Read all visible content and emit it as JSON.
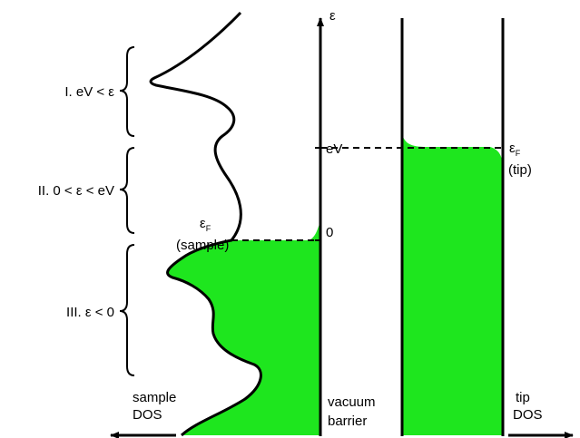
{
  "colors": {
    "filled_states": "#1ee61e",
    "line": "#000000",
    "background": "#ffffff"
  },
  "axis": {
    "energy_symbol": "ε",
    "tick_eV": "eV",
    "tick_zero": "0"
  },
  "regions": [
    {
      "label": "I.  eV < ε"
    },
    {
      "label": "II.  0 < ε < eV"
    },
    {
      "label": "III.  ε < 0"
    }
  ],
  "fermi_sample": {
    "symbol": "ε",
    "subscript": "F",
    "qualifier": "(sample)"
  },
  "fermi_tip": {
    "symbol": "ε",
    "subscript": "F",
    "qualifier": "(tip)"
  },
  "bottom_labels": {
    "sample_dos_line1": "sample",
    "sample_dos_line2": "DOS",
    "barrier_line1": "vacuum",
    "barrier_line2": "barrier",
    "tip_dos_line1": "tip",
    "tip_dos_line2": "DOS"
  }
}
